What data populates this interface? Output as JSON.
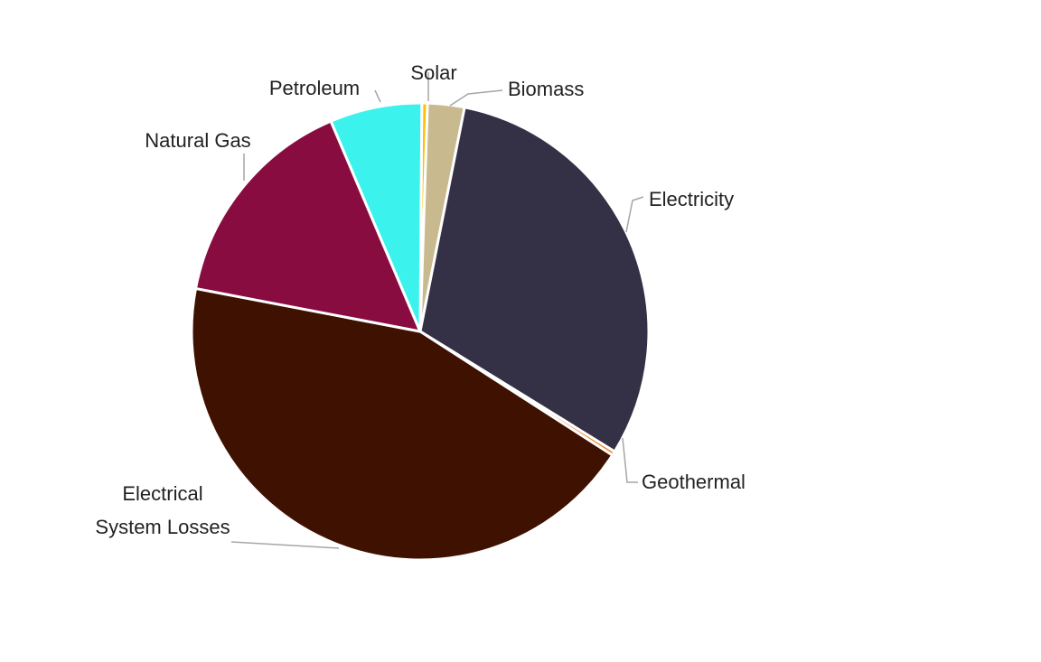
{
  "chart_data": {
    "type": "pie",
    "title": "",
    "slices": [
      {
        "label": "Solar",
        "label_lines": [
          "Solar"
        ],
        "value": 0.4,
        "color": "#FFC000"
      },
      {
        "label": "Biomass",
        "label_lines": [
          "Biomass"
        ],
        "value": 2.6,
        "color": "#C9B98F"
      },
      {
        "label": "Electricity",
        "label_lines": [
          "Electricity"
        ],
        "value": 30.7,
        "color": "#343046"
      },
      {
        "label": "Geothermal",
        "label_lines": [
          "Geothermal"
        ],
        "value": 0.3,
        "color": "#F4862A"
      },
      {
        "label": "Electrical System Losses",
        "label_lines": [
          "Electrical",
          "System Losses"
        ],
        "value": 43.9,
        "color": "#3F1100"
      },
      {
        "label": "Natural Gas",
        "label_lines": [
          "Natural Gas"
        ],
        "value": 15.6,
        "color": "#890C41"
      },
      {
        "label": "Petroleum",
        "label_lines": [
          "Petroleum"
        ],
        "value": 6.5,
        "color": "#3CF2EC"
      }
    ],
    "start_angle_deg": 0.4,
    "direction": "clockwise",
    "legend": "none",
    "data_labels": "category names with leader lines"
  }
}
